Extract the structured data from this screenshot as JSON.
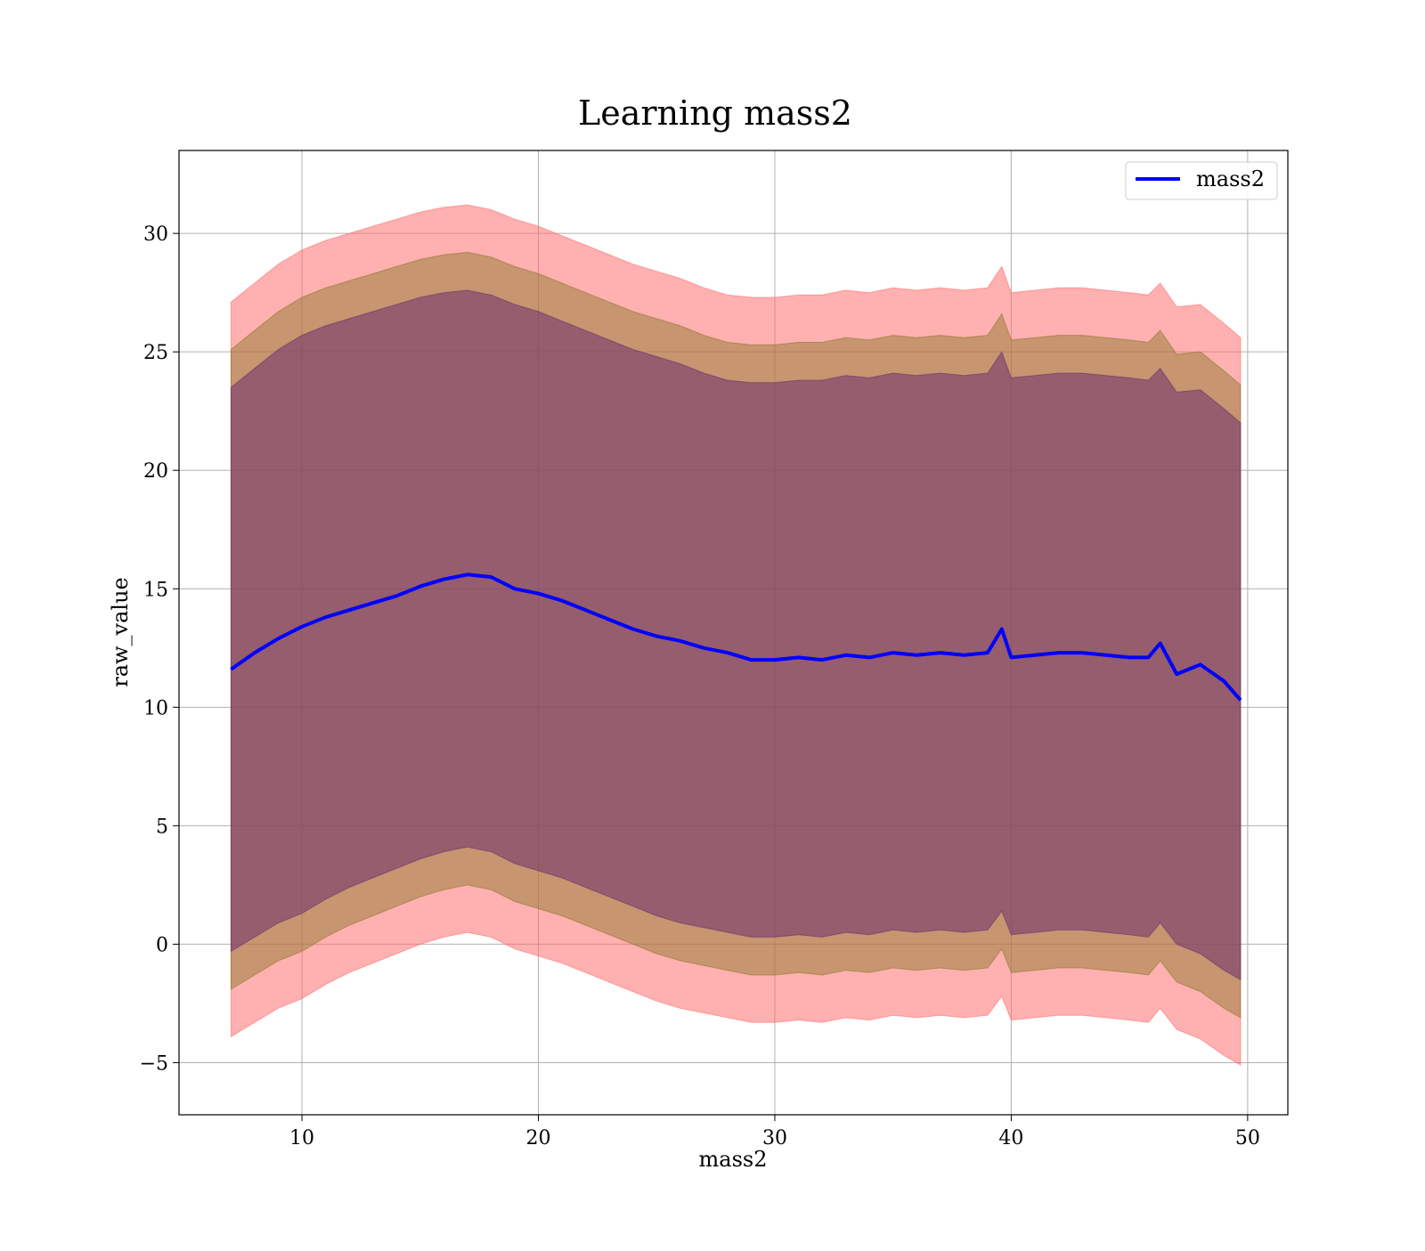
{
  "chart_data": {
    "type": "area",
    "title": "Learning mass2",
    "xlabel": "mass2",
    "ylabel": "raw_value",
    "xlim": [
      4.8,
      51.7
    ],
    "ylim": [
      -7.2,
      33.5
    ],
    "xticks": [
      10,
      20,
      30,
      40,
      50
    ],
    "yticks": [
      -5,
      0,
      5,
      10,
      15,
      20,
      25,
      30
    ],
    "ytick_labels": [
      "−5",
      "0",
      "5",
      "10",
      "15",
      "20",
      "25",
      "30"
    ],
    "grid": true,
    "legend": {
      "position": "top-right",
      "entries": [
        {
          "label": "mass2",
          "color": "#0000ff"
        }
      ]
    },
    "x": [
      7.0,
      8.0,
      9.0,
      10.0,
      11.0,
      12.0,
      13.0,
      14.0,
      15.0,
      16.0,
      17.0,
      18.0,
      19.0,
      20.0,
      21.0,
      22.0,
      23.0,
      24.0,
      25.0,
      26.0,
      27.0,
      28.0,
      29.0,
      30.0,
      31.0,
      32.0,
      33.0,
      34.0,
      35.0,
      36.0,
      37.0,
      38.0,
      39.0,
      39.6,
      40.0,
      41.0,
      42.0,
      43.0,
      44.0,
      45.0,
      45.8,
      46.3,
      47.0,
      48.0,
      49.0,
      49.7
    ],
    "series": [
      {
        "name": "mass2",
        "color": "#0000ff",
        "values": [
          11.6,
          12.3,
          12.9,
          13.4,
          13.8,
          14.1,
          14.4,
          14.7,
          15.1,
          15.4,
          15.6,
          15.5,
          15.0,
          14.8,
          14.5,
          14.1,
          13.7,
          13.3,
          13.0,
          12.8,
          12.5,
          12.3,
          12.0,
          12.0,
          12.1,
          12.0,
          12.2,
          12.1,
          12.3,
          12.2,
          12.3,
          12.2,
          12.3,
          13.3,
          12.1,
          12.2,
          12.3,
          12.3,
          12.2,
          12.1,
          12.1,
          12.7,
          11.4,
          11.8,
          11.1,
          10.3
        ]
      }
    ],
    "bands": [
      {
        "color": "#ff7070",
        "opacity": 0.55,
        "upper": [
          27.1,
          27.9,
          28.7,
          29.3,
          29.7,
          30.0,
          30.3,
          30.6,
          30.9,
          31.1,
          31.2,
          31.0,
          30.6,
          30.3,
          29.9,
          29.5,
          29.1,
          28.7,
          28.4,
          28.1,
          27.7,
          27.4,
          27.3,
          27.3,
          27.4,
          27.4,
          27.6,
          27.5,
          27.7,
          27.6,
          27.7,
          27.6,
          27.7,
          28.6,
          27.5,
          27.6,
          27.7,
          27.7,
          27.6,
          27.5,
          27.4,
          27.9,
          26.9,
          27.0,
          26.2,
          25.6
        ],
        "lower": [
          -3.9,
          -3.3,
          -2.7,
          -2.3,
          -1.7,
          -1.2,
          -0.8,
          -0.4,
          0.0,
          0.3,
          0.5,
          0.3,
          -0.2,
          -0.5,
          -0.8,
          -1.2,
          -1.6,
          -2.0,
          -2.4,
          -2.7,
          -2.9,
          -3.1,
          -3.3,
          -3.3,
          -3.2,
          -3.3,
          -3.1,
          -3.2,
          -3.0,
          -3.1,
          -3.0,
          -3.1,
          -3.0,
          -2.2,
          -3.2,
          -3.1,
          -3.0,
          -3.0,
          -3.1,
          -3.2,
          -3.3,
          -2.7,
          -3.6,
          -4.0,
          -4.7,
          -5.1
        ]
      },
      {
        "color": "#8f7a2e",
        "opacity": 0.5,
        "upper": [
          25.1,
          25.9,
          26.7,
          27.3,
          27.7,
          28.0,
          28.3,
          28.6,
          28.9,
          29.1,
          29.2,
          29.0,
          28.6,
          28.3,
          27.9,
          27.5,
          27.1,
          26.7,
          26.4,
          26.1,
          25.7,
          25.4,
          25.3,
          25.3,
          25.4,
          25.4,
          25.6,
          25.5,
          25.7,
          25.6,
          25.7,
          25.6,
          25.7,
          26.6,
          25.5,
          25.6,
          25.7,
          25.7,
          25.6,
          25.5,
          25.4,
          25.9,
          24.9,
          25.0,
          24.2,
          23.6
        ],
        "lower": [
          -1.9,
          -1.3,
          -0.7,
          -0.3,
          0.3,
          0.8,
          1.2,
          1.6,
          2.0,
          2.3,
          2.5,
          2.3,
          1.8,
          1.5,
          1.2,
          0.8,
          0.4,
          0.0,
          -0.4,
          -0.7,
          -0.9,
          -1.1,
          -1.3,
          -1.3,
          -1.2,
          -1.3,
          -1.1,
          -1.2,
          -1.0,
          -1.1,
          -1.0,
          -1.1,
          -1.0,
          -0.2,
          -1.2,
          -1.1,
          -1.0,
          -1.0,
          -1.1,
          -1.2,
          -1.3,
          -0.7,
          -1.6,
          -2.0,
          -2.7,
          -3.1
        ]
      },
      {
        "color": "#6b2f6e",
        "opacity": 0.55,
        "upper": [
          23.5,
          24.3,
          25.1,
          25.7,
          26.1,
          26.4,
          26.7,
          27.0,
          27.3,
          27.5,
          27.6,
          27.4,
          27.0,
          26.7,
          26.3,
          25.9,
          25.5,
          25.1,
          24.8,
          24.5,
          24.1,
          23.8,
          23.7,
          23.7,
          23.8,
          23.8,
          24.0,
          23.9,
          24.1,
          24.0,
          24.1,
          24.0,
          24.1,
          25.0,
          23.9,
          24.0,
          24.1,
          24.1,
          24.0,
          23.9,
          23.8,
          24.3,
          23.3,
          23.4,
          22.6,
          22.0
        ],
        "lower": [
          -0.3,
          0.3,
          0.9,
          1.3,
          1.9,
          2.4,
          2.8,
          3.2,
          3.6,
          3.9,
          4.1,
          3.9,
          3.4,
          3.1,
          2.8,
          2.4,
          2.0,
          1.6,
          1.2,
          0.9,
          0.7,
          0.5,
          0.3,
          0.3,
          0.4,
          0.3,
          0.5,
          0.4,
          0.6,
          0.5,
          0.6,
          0.5,
          0.6,
          1.4,
          0.4,
          0.5,
          0.6,
          0.6,
          0.5,
          0.4,
          0.3,
          0.9,
          0.0,
          -0.4,
          -1.1,
          -1.5
        ]
      }
    ]
  }
}
